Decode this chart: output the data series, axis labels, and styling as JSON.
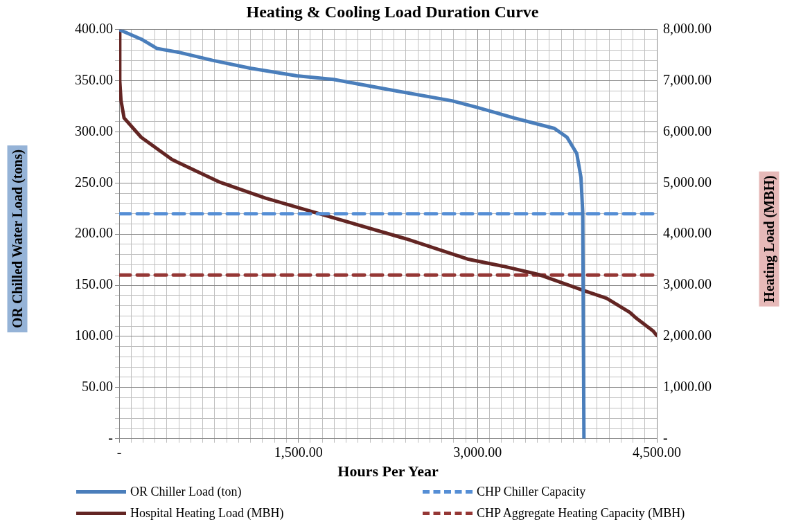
{
  "chart_data": {
    "type": "line",
    "title": "Heating & Cooling Load Duration Curve",
    "xlabel": "Hours Per Year",
    "ylabel": "OR Chilled Water Load (tons)",
    "y2label": "Heating Load (MBH)",
    "xlim": [
      0,
      4500
    ],
    "xticks": [
      {
        "value": 0,
        "label": "-"
      },
      {
        "value": 100,
        "label": null
      },
      {
        "value": 200,
        "label": null
      },
      {
        "value": 300,
        "label": null
      },
      {
        "value": 400,
        "label": null
      },
      {
        "value": 500,
        "label": null
      },
      {
        "value": 600,
        "label": null
      },
      {
        "value": 700,
        "label": null
      },
      {
        "value": 800,
        "label": null
      },
      {
        "value": 900,
        "label": null
      },
      {
        "value": 1000,
        "label": null
      },
      {
        "value": 1100,
        "label": null
      },
      {
        "value": 1200,
        "label": null
      },
      {
        "value": 1300,
        "label": null
      },
      {
        "value": 1400,
        "label": null
      },
      {
        "value": 1500,
        "label": "1,500.00"
      },
      {
        "value": 1600,
        "label": null
      },
      {
        "value": 1700,
        "label": null
      },
      {
        "value": 1800,
        "label": null
      },
      {
        "value": 1900,
        "label": null
      },
      {
        "value": 2000,
        "label": null
      },
      {
        "value": 2100,
        "label": null
      },
      {
        "value": 2200,
        "label": null
      },
      {
        "value": 2300,
        "label": null
      },
      {
        "value": 2400,
        "label": null
      },
      {
        "value": 2500,
        "label": null
      },
      {
        "value": 2600,
        "label": null
      },
      {
        "value": 2700,
        "label": null
      },
      {
        "value": 2800,
        "label": null
      },
      {
        "value": 2900,
        "label": null
      },
      {
        "value": 3000,
        "label": "3,000.00"
      },
      {
        "value": 3100,
        "label": null
      },
      {
        "value": 3200,
        "label": null
      },
      {
        "value": 3300,
        "label": null
      },
      {
        "value": 3400,
        "label": null
      },
      {
        "value": 3500,
        "label": null
      },
      {
        "value": 3600,
        "label": null
      },
      {
        "value": 3700,
        "label": null
      },
      {
        "value": 3800,
        "label": null
      },
      {
        "value": 3900,
        "label": null
      },
      {
        "value": 4000,
        "label": null
      },
      {
        "value": 4100,
        "label": null
      },
      {
        "value": 4200,
        "label": null
      },
      {
        "value": 4300,
        "label": null
      },
      {
        "value": 4400,
        "label": null
      },
      {
        "value": 4500,
        "label": "4,500.00"
      }
    ],
    "ylim": [
      0,
      400
    ],
    "yticks": [
      {
        "value": 0,
        "label": "-"
      },
      {
        "value": 10,
        "label": null
      },
      {
        "value": 20,
        "label": null
      },
      {
        "value": 30,
        "label": null
      },
      {
        "value": 40,
        "label": null
      },
      {
        "value": 50,
        "label": "50.00"
      },
      {
        "value": 60,
        "label": null
      },
      {
        "value": 70,
        "label": null
      },
      {
        "value": 80,
        "label": null
      },
      {
        "value": 90,
        "label": null
      },
      {
        "value": 100,
        "label": "100.00"
      },
      {
        "value": 110,
        "label": null
      },
      {
        "value": 120,
        "label": null
      },
      {
        "value": 130,
        "label": null
      },
      {
        "value": 140,
        "label": null
      },
      {
        "value": 150,
        "label": "150.00"
      },
      {
        "value": 160,
        "label": null
      },
      {
        "value": 170,
        "label": null
      },
      {
        "value": 180,
        "label": null
      },
      {
        "value": 190,
        "label": null
      },
      {
        "value": 200,
        "label": "200.00"
      },
      {
        "value": 210,
        "label": null
      },
      {
        "value": 220,
        "label": null
      },
      {
        "value": 230,
        "label": null
      },
      {
        "value": 240,
        "label": null
      },
      {
        "value": 250,
        "label": "250.00"
      },
      {
        "value": 260,
        "label": null
      },
      {
        "value": 270,
        "label": null
      },
      {
        "value": 280,
        "label": null
      },
      {
        "value": 290,
        "label": null
      },
      {
        "value": 300,
        "label": "300.00"
      },
      {
        "value": 310,
        "label": null
      },
      {
        "value": 320,
        "label": null
      },
      {
        "value": 330,
        "label": null
      },
      {
        "value": 340,
        "label": null
      },
      {
        "value": 350,
        "label": "350.00"
      },
      {
        "value": 360,
        "label": null
      },
      {
        "value": 370,
        "label": null
      },
      {
        "value": 380,
        "label": null
      },
      {
        "value": 390,
        "label": null
      },
      {
        "value": 400,
        "label": "400.00"
      }
    ],
    "y2lim": [
      0,
      8000
    ],
    "y2ticks": [
      {
        "value": 0,
        "label": "-"
      },
      {
        "value": 1000,
        "label": "1,000.00"
      },
      {
        "value": 2000,
        "label": "2,000.00"
      },
      {
        "value": 3000,
        "label": "3,000.00"
      },
      {
        "value": 4000,
        "label": "4,000.00"
      },
      {
        "value": 5000,
        "label": "5,000.00"
      },
      {
        "value": 6000,
        "label": "6,000.00"
      },
      {
        "value": 7000,
        "label": "7,000.00"
      },
      {
        "value": 8000,
        "label": "8,000.00"
      }
    ],
    "grid": true,
    "legend": "bottom",
    "marker": "none",
    "series": [
      {
        "name": "OR Chiller Load (ton)",
        "color": "#4a7ebb",
        "line_style": "solid",
        "x": [
          0,
          187,
          315,
          495,
          781,
          1096,
          1486,
          1795,
          2268,
          2786,
          2996,
          3305,
          3643,
          3748,
          3830,
          3865,
          3880,
          3890
        ],
        "values": [
          400,
          390.6,
          381.6,
          377.9,
          370,
          362.3,
          354.8,
          351.3,
          341.1,
          330.4,
          323.9,
          313.6,
          303.4,
          294.8,
          278.8,
          255.6,
          220.9,
          0
        ]
      },
      {
        "name": "CHP Chiller Capacity",
        "color": "#558ed5",
        "line_style": "dashed",
        "x": [
          0,
          4500
        ],
        "values": [
          220,
          220
        ]
      },
      {
        "name": "Hospital Heating Load (MBH)",
        "color": "#632523",
        "line_style": "solid",
        "axis": "y2",
        "x": [
          0,
          5,
          15,
          41,
          184,
          443,
          834,
          1224,
          1614,
          2401,
          2916,
          3211,
          3509,
          3900,
          4080,
          4273,
          4320,
          4468,
          4500
        ],
        "values": [
          8000,
          7000,
          6620,
          6272,
          5895,
          5458,
          5024,
          4704,
          4442,
          3908,
          3512,
          3374,
          3212,
          2888,
          2744,
          2472,
          2372,
          2108,
          2016
        ]
      },
      {
        "name": "CHP Aggregate Heating Capacity (MBH)",
        "color": "#953735",
        "line_style": "dashed",
        "axis": "y2",
        "x": [
          0,
          4500
        ],
        "values": [
          3200,
          3200
        ]
      }
    ]
  }
}
